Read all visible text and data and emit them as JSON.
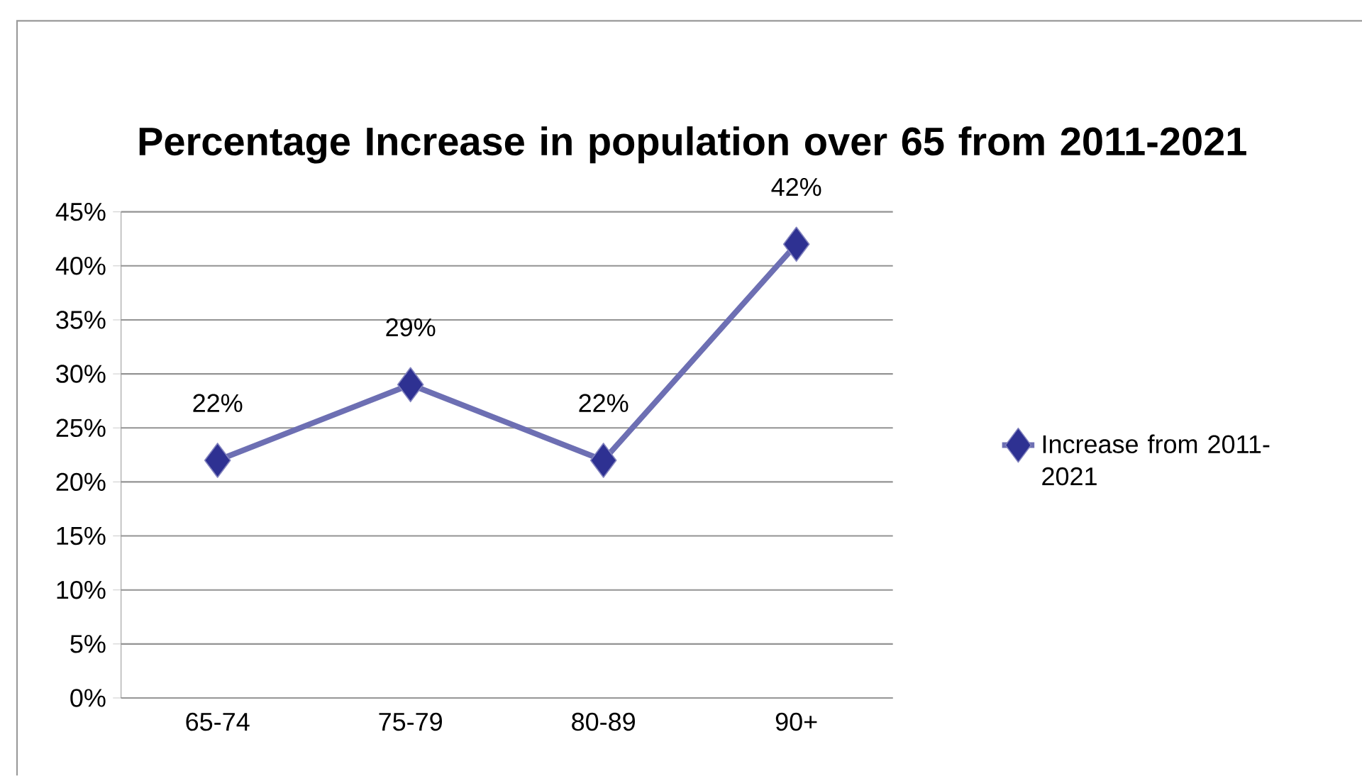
{
  "chart_data": {
    "type": "line",
    "title": "Percentage Increase in population over 65 from 2011-2021",
    "categories": [
      "65-74",
      "75-79",
      "80-89",
      "90+"
    ],
    "series": [
      {
        "name": "Increase from 2011-2021",
        "color": "#2e3192",
        "values": [
          22,
          29,
          22,
          42
        ],
        "value_labels": [
          "22%",
          "29%",
          "22%",
          "42%"
        ]
      }
    ],
    "ylim": [
      0,
      45
    ],
    "yticks": [
      {
        "value": 0,
        "label": "0%"
      },
      {
        "value": 5,
        "label": "5%"
      },
      {
        "value": 10,
        "label": "10%"
      },
      {
        "value": 15,
        "label": "15%"
      },
      {
        "value": 20,
        "label": "20%"
      },
      {
        "value": 25,
        "label": "25%"
      },
      {
        "value": 30,
        "label": "30%"
      },
      {
        "value": 35,
        "label": "35%"
      },
      {
        "value": 40,
        "label": "40%"
      },
      {
        "value": 45,
        "label": "45%"
      }
    ],
    "grid": "y",
    "legend": "right",
    "marker": "diamond",
    "line_style": "solid"
  }
}
